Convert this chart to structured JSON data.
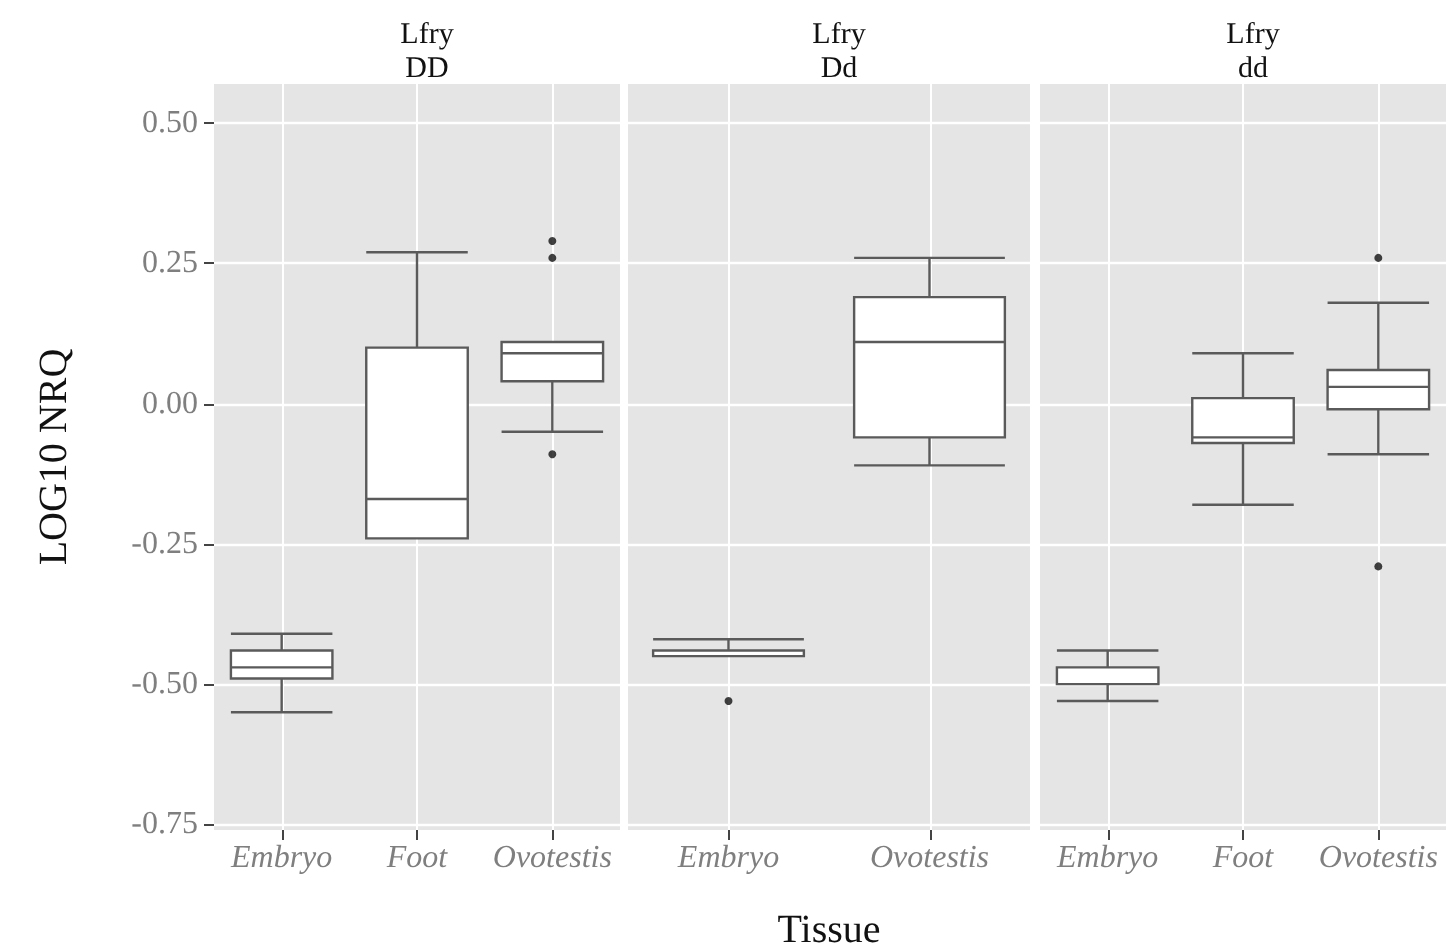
{
  "chart_data": [
    {
      "type": "box",
      "title": "Lfry\nDD",
      "ylabel": "LOG10 NRQ",
      "categories": [
        "Embryo",
        "Foot",
        "Ovotestis"
      ],
      "color": "#ffffff",
      "boxes": [
        {
          "low": -0.55,
          "q1": -0.49,
          "median": -0.47,
          "q3": -0.44,
          "high": -0.41
        },
        {
          "low": -0.24,
          "q1": -0.24,
          "median": -0.17,
          "q3": 0.1,
          "high": 0.27
        },
        {
          "low": -0.05,
          "q1": 0.04,
          "median": 0.09,
          "q3": 0.11,
          "high": 0.11,
          "outliers": [
            0.29,
            0.26,
            -0.09
          ]
        }
      ],
      "ylim": [
        -0.76,
        0.57
      ],
      "yticks": [
        {
          "value": -0.75,
          "label": "-0.75"
        },
        {
          "value": -0.5,
          "label": "-0.50"
        },
        {
          "value": -0.25,
          "label": "-0.25"
        },
        {
          "value": 0,
          "label": "0.00"
        },
        {
          "value": 0.25,
          "label": "0.25"
        },
        {
          "value": 0.5,
          "label": "0.50"
        }
      ],
      "grid": true
    },
    {
      "type": "box",
      "title": "Lfry\nDd",
      "xlabel": "Tissue",
      "categories": [
        "Embryo",
        "Ovotestis"
      ],
      "color": "#ffffff",
      "boxes": [
        {
          "low": -0.45,
          "q1": -0.45,
          "median": -0.45,
          "q3": -0.44,
          "high": -0.42,
          "outliers": [
            -0.53
          ]
        },
        {
          "low": -0.11,
          "q1": -0.06,
          "median": 0.11,
          "q3": 0.19,
          "high": 0.26
        }
      ],
      "ylim": [
        -0.76,
        0.57
      ],
      "yticks": [
        -0.75,
        -0.5,
        -0.25,
        0,
        0.25,
        0.5
      ],
      "grid": true,
      "tick_labels": "x"
    },
    {
      "type": "box",
      "title": "Lfry\ndd",
      "categories": [
        "Embryo",
        "Foot",
        "Ovotestis"
      ],
      "color": "#ffffff",
      "boxes": [
        {
          "low": -0.53,
          "q1": -0.5,
          "median": -0.47,
          "q3": -0.47,
          "high": -0.44
        },
        {
          "low": -0.18,
          "q1": -0.07,
          "median": -0.06,
          "q3": 0.01,
          "high": 0.09
        },
        {
          "low": -0.09,
          "q1": -0.01,
          "median": 0.03,
          "q3": 0.06,
          "high": 0.18,
          "outliers": [
            0.26,
            -0.29
          ]
        }
      ],
      "ylim": [
        -0.76,
        0.57
      ],
      "yticks": [
        -0.75,
        -0.5,
        -0.25,
        0,
        0.25,
        0.5
      ],
      "grid": true,
      "tick_labels": "x"
    }
  ]
}
